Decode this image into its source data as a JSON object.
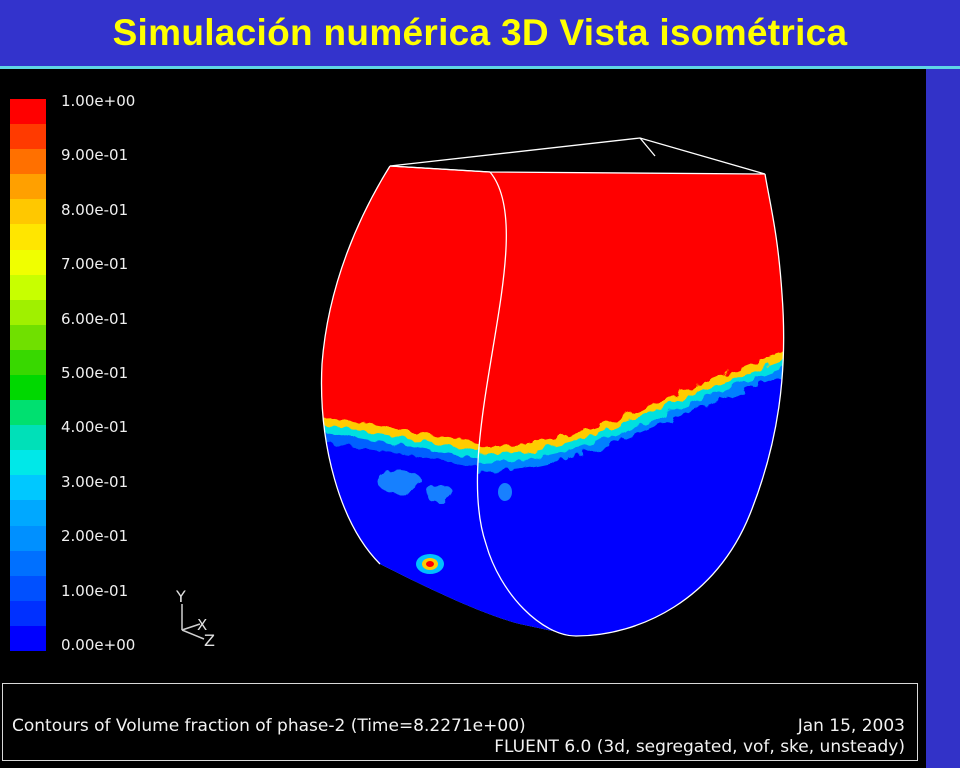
{
  "slide": {
    "title": "Simulación numérica 3D Vista isométrica"
  },
  "legend": {
    "labels": [
      "1.00e+00",
      "9.00e-01",
      "8.00e-01",
      "7.00e-01",
      "6.00e-01",
      "5.00e-01",
      "4.00e-01",
      "3.00e-01",
      "2.00e-01",
      "1.00e-01",
      "0.00e+00"
    ],
    "colors": [
      "#ff0000",
      "#ff3a00",
      "#ff7000",
      "#ffa000",
      "#ffc800",
      "#ffe600",
      "#f0ff00",
      "#c8ff00",
      "#a0f000",
      "#70e000",
      "#38d800",
      "#00d800",
      "#00e070",
      "#00e0b8",
      "#00e8e8",
      "#00c8ff",
      "#00a8ff",
      "#0090ff",
      "#0070ff",
      "#0050ff",
      "#0030ff",
      "#0000ff"
    ]
  },
  "axes": {
    "y_label": "Y",
    "x_label": "X",
    "z_label": "Z"
  },
  "colors": {
    "phase_full": "#ff0000",
    "phase_empty": "#0000ff",
    "outline": "#ffffff"
  },
  "footer": {
    "caption": "Contours of Volume fraction of phase-2  (Time=8.2271e+00)",
    "date": "Jan 15, 2003",
    "solver": "FLUENT 6.0 (3d, segregated, vof, ske, unsteady)"
  }
}
